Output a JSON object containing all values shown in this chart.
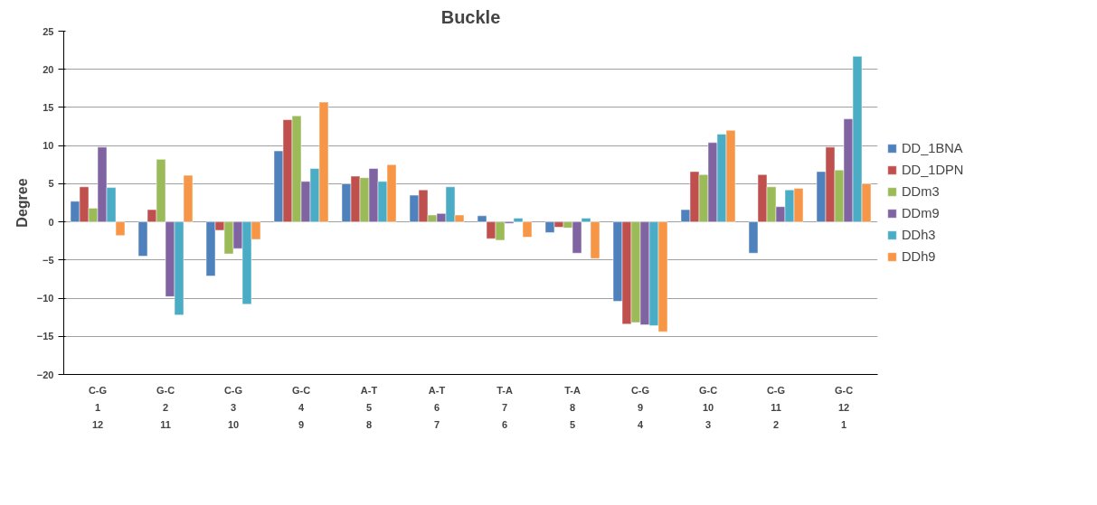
{
  "chart_data": {
    "type": "bar",
    "title": "Buckle",
    "ylabel": "Degree",
    "categories": [
      "C-G\n1\n12",
      "G-C\n2\n11",
      "C-G\n3\n10",
      "G-C\n4\n9",
      "A-T\n5\n8",
      "A-T\n6\n7",
      "T-A\n7\n6",
      "T-A\n8\n5",
      "C-G\n9\n4",
      "G-C\n10\n3",
      "C-G\n11\n2",
      "G-C\n12\n1"
    ],
    "series": [
      {
        "name": "DD_1BNA",
        "color": "#4f81bd",
        "values": [
          2.7,
          -4.5,
          -7.1,
          9.3,
          5.0,
          3.5,
          0.8,
          -1.4,
          -10.4,
          1.6,
          -4.1,
          6.6
        ]
      },
      {
        "name": "DD_1DPN",
        "color": "#c0504d",
        "values": [
          4.6,
          1.6,
          -1.1,
          13.4,
          6.0,
          4.2,
          -2.2,
          -0.7,
          -13.4,
          6.6,
          6.2,
          9.8
        ]
      },
      {
        "name": "DDm3",
        "color": "#9bbb59",
        "values": [
          1.8,
          8.2,
          -4.2,
          13.9,
          5.8,
          0.9,
          -2.4,
          -0.8,
          -13.2,
          6.2,
          4.6,
          6.8
        ]
      },
      {
        "name": "DDm9",
        "color": "#8064a2",
        "values": [
          9.8,
          -9.8,
          -3.5,
          5.3,
          7.0,
          1.1,
          -0.2,
          -4.1,
          -13.5,
          10.4,
          2.0,
          13.5
        ]
      },
      {
        "name": "DDh3",
        "color": "#4bacc6",
        "values": [
          4.5,
          -12.2,
          -10.8,
          7.0,
          5.3,
          4.6,
          0.5,
          0.5,
          -13.6,
          11.5,
          4.2,
          21.7
        ]
      },
      {
        "name": "DDh9",
        "color": "#f79646",
        "values": [
          -1.8,
          6.1,
          -2.3,
          15.7,
          7.5,
          0.9,
          -2.0,
          -4.8,
          -14.4,
          12.0,
          4.4,
          5.0
        ]
      }
    ],
    "ylim": [
      -20,
      25
    ],
    "yticks": [
      -20,
      -15,
      -10,
      -5,
      0,
      5,
      10,
      15,
      20,
      25
    ],
    "grid": "y",
    "legend": "right"
  }
}
